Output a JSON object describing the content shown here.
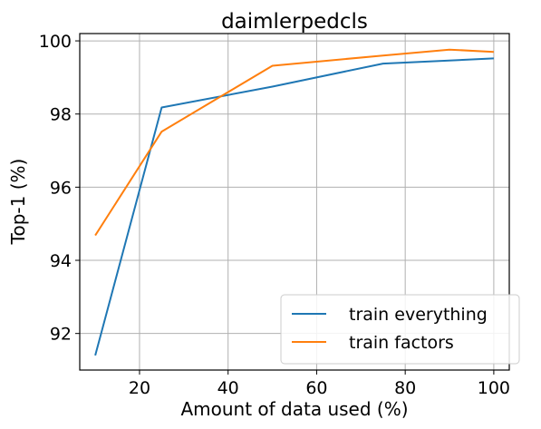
{
  "chart_data": {
    "type": "line",
    "title": "daimlerpedcls",
    "xlabel": "Amount of data used (%)",
    "ylabel": "Top-1 (%)",
    "xlim": [
      6.5,
      103.5
    ],
    "ylim": [
      91.0,
      100.2
    ],
    "xticks": [
      20,
      40,
      60,
      80,
      100
    ],
    "yticks": [
      92,
      94,
      96,
      98,
      100
    ],
    "grid": true,
    "legend_position": "lower-right",
    "series": [
      {
        "name": "train everything",
        "color": "#1f77b4",
        "x": [
          10,
          25,
          50,
          75,
          100
        ],
        "y": [
          91.4,
          98.18,
          98.75,
          99.38,
          99.52
        ]
      },
      {
        "name": "train factors",
        "color": "#ff7f0e",
        "x": [
          10,
          25,
          50,
          75,
          90,
          100
        ],
        "y": [
          94.68,
          97.52,
          99.32,
          99.6,
          99.76,
          99.7
        ]
      }
    ]
  }
}
